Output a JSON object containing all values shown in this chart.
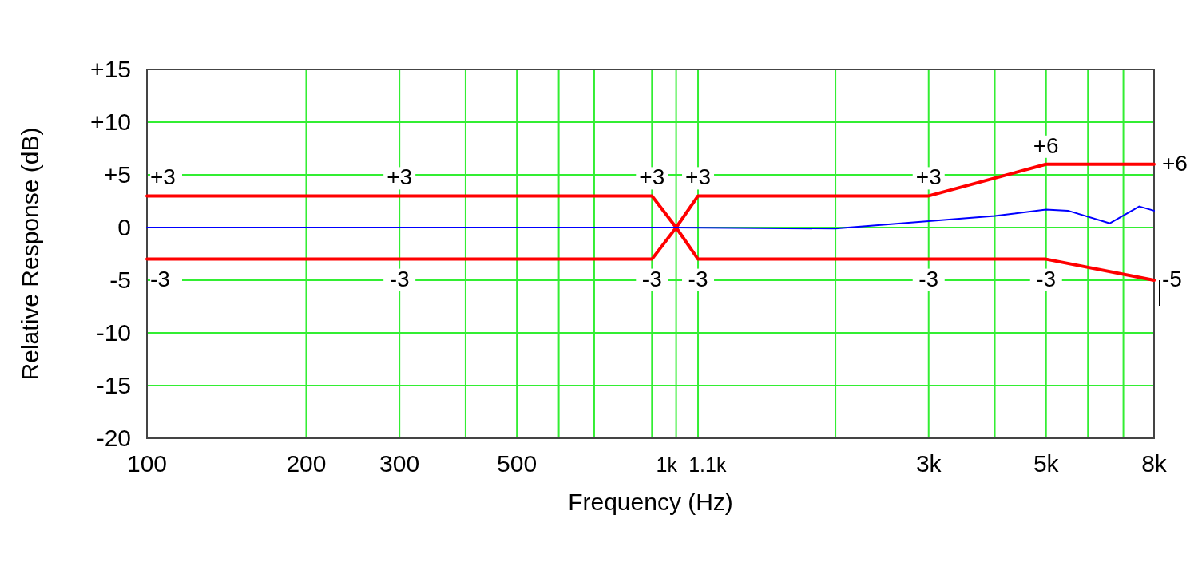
{
  "chart_data": {
    "type": "line",
    "xlabel": "Frequency (Hz)",
    "ylabel": "Relative Response (dB)",
    "log": "x",
    "grid": true,
    "xlim": [
      100,
      8000
    ],
    "ylim": [
      -20,
      15
    ],
    "xticks": [
      100,
      200,
      300,
      {
        "value": 400,
        "label": null
      },
      500,
      {
        "value": 600,
        "label": null
      },
      {
        "value": 700,
        "label": null
      },
      {
        "value": 900,
        "label": null
      },
      {
        "value": 1000,
        "label": "1k"
      },
      {
        "value": 1100,
        "label": "1.1k"
      },
      {
        "value": 2000,
        "label": null
      },
      {
        "value": 3000,
        "label": "3k"
      },
      {
        "value": 4000,
        "label": null
      },
      {
        "value": 5000,
        "label": "5k"
      },
      {
        "value": 6000,
        "label": null
      },
      {
        "value": 7000,
        "label": null
      },
      {
        "value": 8000,
        "label": "8k"
      }
    ],
    "yticks": [
      {
        "value": 15,
        "label": "+15"
      },
      {
        "value": 10,
        "label": "+10"
      },
      {
        "value": 5,
        "label": "+5"
      },
      0,
      -5,
      -10,
      -15,
      -20
    ],
    "series": [
      {
        "color": "#ff0000",
        "x": [
          100,
          900,
          1000,
          1100,
          3000,
          5000,
          8000
        ],
        "values": [
          3,
          3,
          0,
          3,
          3,
          6,
          6
        ]
      },
      {
        "color": "#ff0000",
        "x": [
          100,
          900,
          1000,
          1100,
          5000,
          8000
        ],
        "values": [
          -3,
          -3,
          0,
          -3,
          -3,
          -5
        ]
      },
      {
        "color": "#0000ff",
        "x": [
          100,
          500,
          1000,
          2000,
          3000,
          4000,
          5000,
          5500,
          6600,
          7500,
          8000
        ],
        "values": [
          0,
          0,
          0,
          -0.1,
          0.6,
          1.1,
          1.7,
          1.6,
          0.4,
          2.0,
          1.6
        ]
      }
    ],
    "annotations": [
      {
        "text": "+3",
        "x": 100,
        "y": 3
      },
      {
        "text": "+3",
        "x": 300,
        "y": 3
      },
      {
        "text": "+3",
        "x": 900,
        "y": 3
      },
      {
        "text": "+3",
        "x": 1100,
        "y": 3
      },
      {
        "text": "+3",
        "x": 3000,
        "y": 3
      },
      {
        "text": "+6",
        "x": 5000,
        "y": 6
      },
      {
        "text": "+6",
        "x": 8000,
        "y": 6
      },
      {
        "text": "-3",
        "x": 100,
        "y": -3
      },
      {
        "text": "-3",
        "x": 300,
        "y": -3
      },
      {
        "text": "-3",
        "x": 900,
        "y": -3
      },
      {
        "text": "-3",
        "x": 1100,
        "y": -3
      },
      {
        "text": "-3",
        "x": 3000,
        "y": -3
      },
      {
        "text": "-3",
        "x": 5000,
        "y": -3
      },
      {
        "text": "-5",
        "x": 8000,
        "y": -5
      }
    ]
  }
}
